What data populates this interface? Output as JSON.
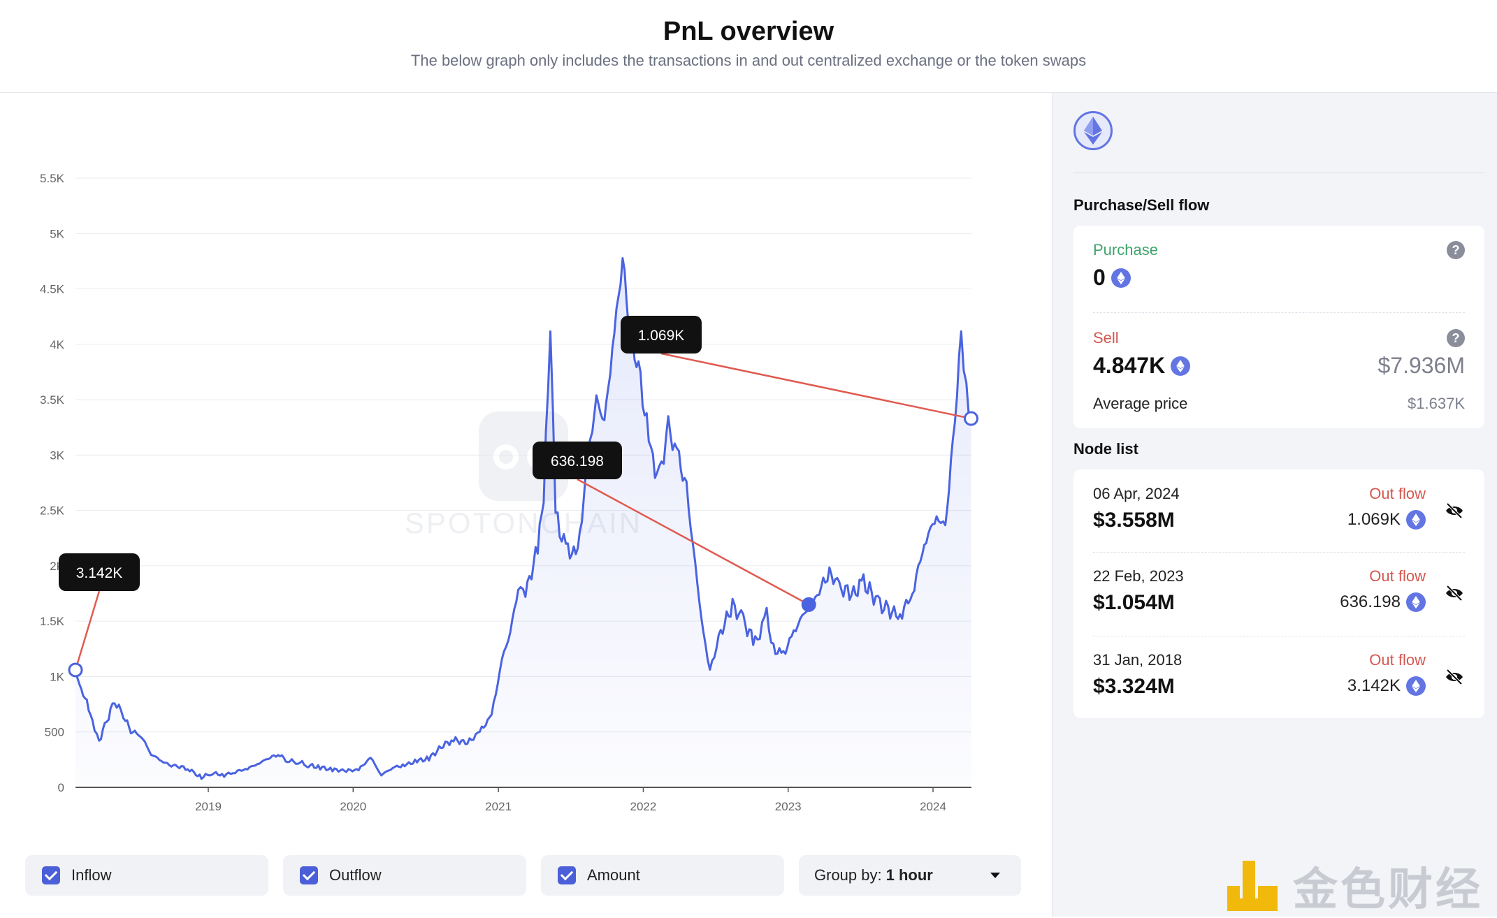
{
  "header": {
    "title": "PnL overview",
    "subtitle": "The below graph only includes the transactions in and out centralized exchange or the token swaps"
  },
  "chart_data": {
    "type": "line",
    "title": "",
    "xlabel": "",
    "ylabel": "",
    "ylim": [
      0,
      5500
    ],
    "y_ticks": [
      "0",
      "500",
      "1K",
      "1.5K",
      "2K",
      "2.5K",
      "3K",
      "3.5K",
      "4K",
      "4.5K",
      "5K",
      "5.5K"
    ],
    "x_ticks": [
      "2019",
      "2020",
      "2021",
      "2022",
      "2023",
      "2024"
    ],
    "grid": true,
    "area_fill": true,
    "line_color": "#4a63e0",
    "series": [
      {
        "name": "",
        "x": [
          "2018-01-31",
          "2018-02-15",
          "2018-03-01",
          "2018-03-15",
          "2018-04-01",
          "2018-04-20",
          "2018-05-10",
          "2018-06-01",
          "2018-06-20",
          "2018-07-15",
          "2018-08-10",
          "2018-09-05",
          "2018-09-25",
          "2018-10-15",
          "2018-11-10",
          "2018-12-01",
          "2018-12-15",
          "2019-01-10",
          "2019-02-10",
          "2019-03-10",
          "2019-04-10",
          "2019-05-10",
          "2019-06-01",
          "2019-06-26",
          "2019-07-20",
          "2019-08-15",
          "2019-09-10",
          "2019-10-10",
          "2019-11-10",
          "2019-12-15",
          "2020-01-15",
          "2020-02-14",
          "2020-03-12",
          "2020-04-10",
          "2020-05-10",
          "2020-06-10",
          "2020-07-10",
          "2020-08-15",
          "2020-09-10",
          "2020-10-15",
          "2020-11-15",
          "2020-12-15",
          "2021-01-10",
          "2021-01-31",
          "2021-02-20",
          "2021-03-10",
          "2021-04-10",
          "2021-04-25",
          "2021-05-12",
          "2021-05-25",
          "2021-06-20",
          "2021-07-20",
          "2021-08-15",
          "2021-09-05",
          "2021-09-25",
          "2021-10-20",
          "2021-11-10",
          "2021-11-30",
          "2021-12-20",
          "2022-01-20",
          "2022-02-10",
          "2022-03-05",
          "2022-04-01",
          "2022-04-20",
          "2022-05-12",
          "2022-06-01",
          "2022-06-18",
          "2022-07-10",
          "2022-08-14",
          "2022-09-10",
          "2022-10-10",
          "2022-11-08",
          "2022-11-25",
          "2022-12-20",
          "2023-01-15",
          "2023-02-22",
          "2023-03-10",
          "2023-04-15",
          "2023-05-10",
          "2023-06-15",
          "2023-07-10",
          "2023-08-20",
          "2023-09-10",
          "2023-10-10",
          "2023-11-10",
          "2023-12-10",
          "2024-01-10",
          "2024-02-01",
          "2024-02-20",
          "2024-03-12",
          "2024-03-25",
          "2024-04-06"
        ],
        "y": [
          1060,
          880,
          780,
          600,
          420,
          600,
          780,
          650,
          510,
          470,
          300,
          240,
          200,
          190,
          170,
          120,
          90,
          130,
          110,
          140,
          170,
          220,
          260,
          300,
          240,
          230,
          200,
          180,
          160,
          150,
          160,
          270,
          110,
          180,
          200,
          240,
          260,
          380,
          430,
          400,
          500,
          650,
          1150,
          1400,
          1800,
          1750,
          2150,
          2600,
          4120,
          2450,
          2150,
          2100,
          3000,
          3500,
          3300,
          4100,
          4780,
          4050,
          3800,
          3000,
          2800,
          3250,
          2950,
          2700,
          2000,
          1400,
          1050,
          1350,
          1650,
          1500,
          1300,
          1550,
          1250,
          1200,
          1400,
          1650,
          1700,
          1950,
          1800,
          1750,
          1850,
          1650,
          1600,
          1550,
          1750,
          2200,
          2450,
          2350,
          3100,
          4060,
          3600,
          3330
        ]
      }
    ],
    "annotations": [
      {
        "label": "3.142K",
        "x": "2018-01-31",
        "y": 1060
      },
      {
        "label": "636.198",
        "x": "2023-02-22",
        "y": 1650
      },
      {
        "label": "1.069K",
        "x": "2024-04-06",
        "y": 3330
      }
    ],
    "watermark": "SPOTONCHAIN"
  },
  "controls": {
    "inflow_label": "Inflow",
    "outflow_label": "Outflow",
    "amount_label": "Amount",
    "group_prefix": "Group by:",
    "group_value": "1 hour"
  },
  "sidebar": {
    "section_flow": "Purchase/Sell flow",
    "purchase_label": "Purchase",
    "purchase_value": "0",
    "sell_label": "Sell",
    "sell_value": "4.847K",
    "sell_usd": "$7.936M",
    "avg_price_label": "Average price",
    "avg_price_value": "$1.637K",
    "section_nodes": "Node list",
    "nodes": [
      {
        "date": "06 Apr, 2024",
        "usd": "$3.558M",
        "flow": "Out flow",
        "amount": "1.069K"
      },
      {
        "date": "22 Feb, 2023",
        "usd": "$1.054M",
        "flow": "Out flow",
        "amount": "636.198"
      },
      {
        "date": "31 Jan, 2018",
        "usd": "$3.324M",
        "flow": "Out flow",
        "amount": "3.142K"
      }
    ]
  },
  "watermark": {
    "text": "金色财经"
  },
  "colors": {
    "accent": "#4a63e0",
    "sell_red": "#d5574f",
    "purchase_green": "#3fa36b",
    "tooltip_bg": "#111111"
  }
}
